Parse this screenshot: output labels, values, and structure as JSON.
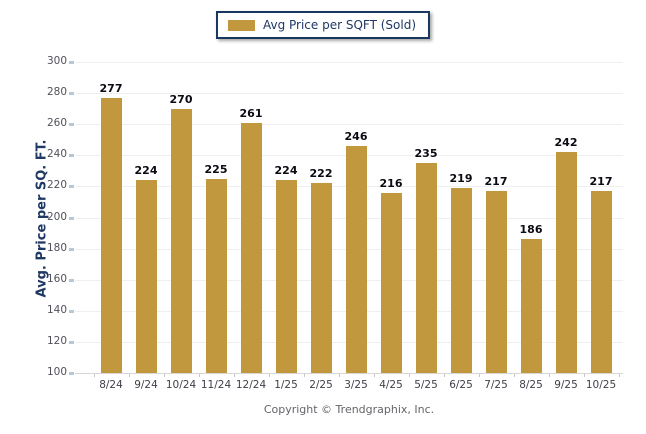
{
  "legend": {
    "label": "Avg Price per SQFT (Sold)",
    "swatch_color": "#C2983F"
  },
  "footer": {
    "copyright": "Copyright © Trendgraphix, Inc."
  },
  "colors": {
    "bar": "#C2983F",
    "legend_border": "#17375E",
    "axis_title": "#1F3864",
    "axis_tick_text": "#50515A",
    "value_label": "#0B0B14",
    "gridline": "#EFEFEF"
  },
  "chart_data": {
    "type": "bar",
    "title": "",
    "xlabel": "",
    "ylabel": "Avg. Price per SQ. FT.",
    "categories": [
      "8/24",
      "9/24",
      "10/24",
      "11/24",
      "12/24",
      "1/25",
      "2/25",
      "3/25",
      "4/25",
      "5/25",
      "6/25",
      "7/25",
      "8/25",
      "9/25",
      "10/25"
    ],
    "values": [
      277,
      224,
      270,
      225,
      261,
      224,
      222,
      246,
      216,
      235,
      219,
      217,
      186,
      242,
      217
    ],
    "series_name": "Avg Price per SQFT (Sold)",
    "ylim": [
      100,
      300
    ],
    "yticks": [
      100,
      120,
      140,
      160,
      180,
      200,
      220,
      240,
      260,
      280,
      300
    ],
    "bar_color": "#C2983F",
    "grid": true,
    "legend_position": "top-center"
  }
}
